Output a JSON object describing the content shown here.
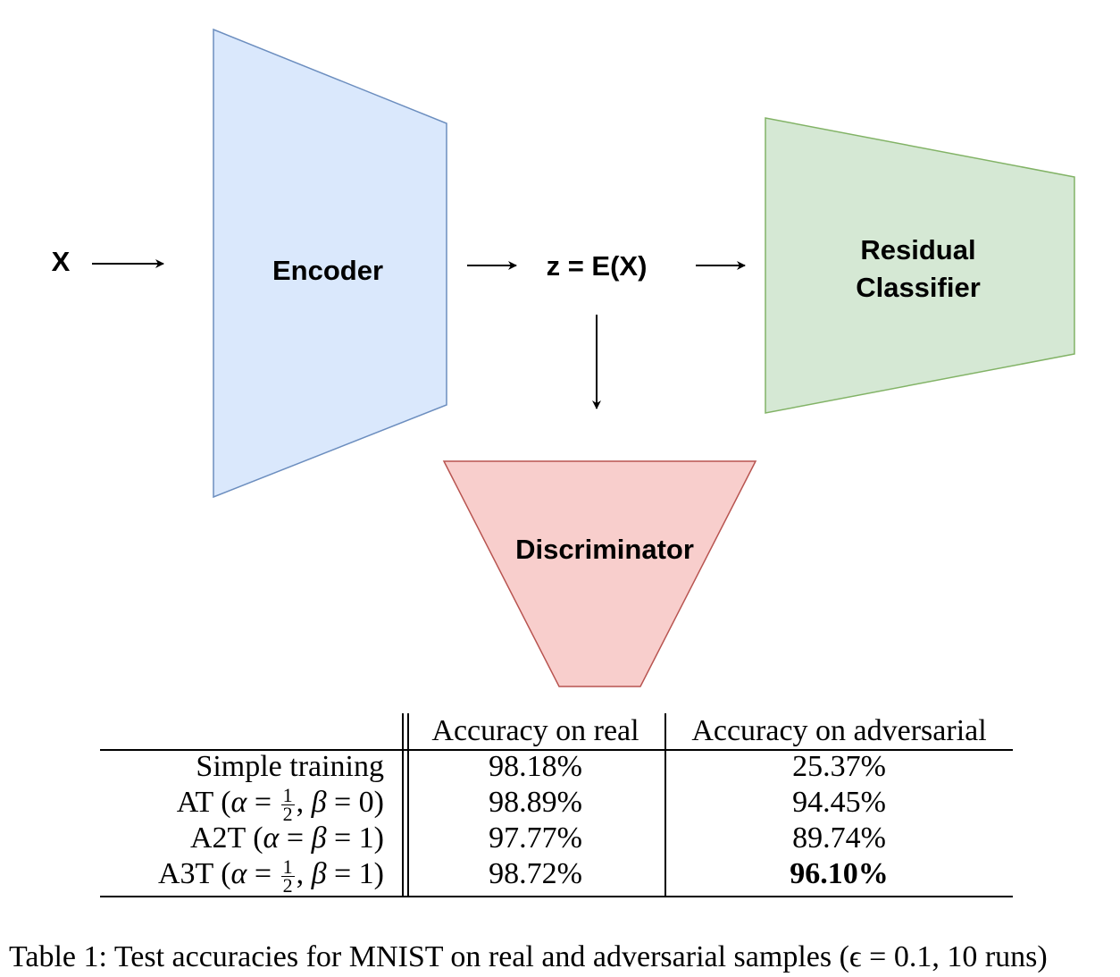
{
  "diagram": {
    "input_label": "X",
    "encoder_label": "Encoder",
    "latent_label": "z = E(X)",
    "classifier_label_line1": "Residual",
    "classifier_label_line2": "Classifier",
    "discriminator_label": "Discriminator",
    "colors": {
      "encoder_fill": "#dae8fc",
      "encoder_stroke": "#6c8ebf",
      "classifier_fill": "#d5e8d4",
      "classifier_stroke": "#82b366",
      "discriminator_fill": "#f8cecc",
      "discriminator_stroke": "#b85450"
    }
  },
  "table": {
    "headers": {
      "real": "Accuracy on real",
      "adversarial": "Accuracy on adversarial"
    },
    "rows": [
      {
        "method": "Simple training",
        "params": "",
        "real": "98.18%",
        "adversarial": "25.37%",
        "bold_adversarial": false
      },
      {
        "method": "AT",
        "params": "(α = 1/2, β = 0)",
        "real": "98.89%",
        "adversarial": "94.45%",
        "bold_adversarial": false
      },
      {
        "method": "A2T",
        "params": "(α = β = 1)",
        "real": "97.77%",
        "adversarial": "89.74%",
        "bold_adversarial": false
      },
      {
        "method": "A3T",
        "params": "(α = 1/2, β = 1)",
        "real": "98.72%",
        "adversarial": "96.10%",
        "bold_adversarial": true
      }
    ]
  },
  "caption": "Table 1: Test accuracies for MNIST on real and adversarial samples (ϵ = 0.1, 10 runs)"
}
